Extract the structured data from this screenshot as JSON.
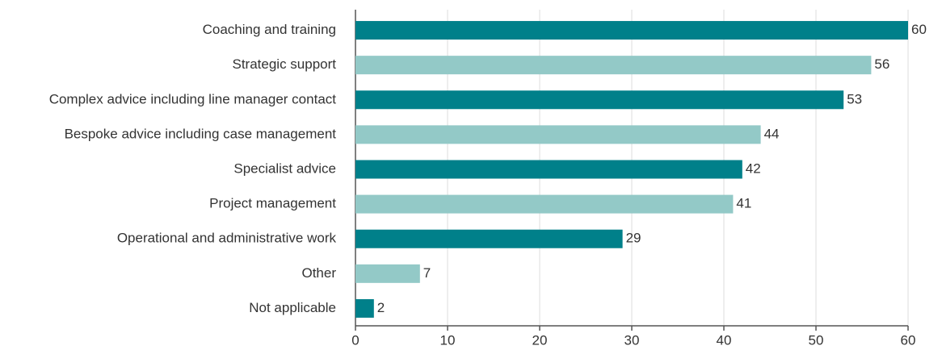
{
  "chart_data": {
    "type": "barh",
    "categories": [
      "Coaching and training",
      "Strategic support",
      "Complex advice including line manager contact",
      "Bespoke advice including case management",
      "Specialist advice",
      "Project management",
      "Operational and administrative work",
      "Other",
      "Not applicable"
    ],
    "values": [
      60,
      56,
      53,
      44,
      42,
      41,
      29,
      7,
      2
    ],
    "colors": [
      "#00808a",
      "#93c9c7",
      "#00808a",
      "#93c9c7",
      "#00808a",
      "#93c9c7",
      "#00808a",
      "#93c9c7",
      "#00808a"
    ],
    "xlim": [
      0,
      60
    ],
    "xticks": [
      0,
      10,
      20,
      30,
      40,
      50,
      60
    ],
    "grid": true
  }
}
